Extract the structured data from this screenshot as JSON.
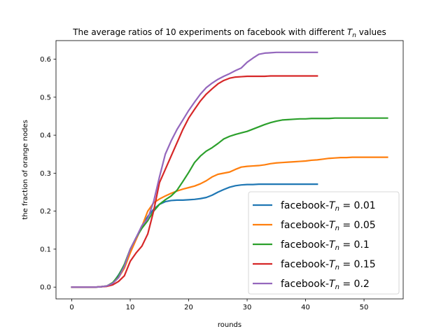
{
  "chart_data": {
    "type": "line",
    "title": "The average ratios of 10 experiments on facebook with different Tn values",
    "title_html": {
      "prefix": "The average ratios of 10 experiments on facebook with different ",
      "var": "T",
      "sub": "n",
      "suffix": " values"
    },
    "xlabel": "rounds",
    "ylabel": "the fraction of orange nodes",
    "xlim": [
      -2.7,
      56.7
    ],
    "ylim": [
      -0.031,
      0.649
    ],
    "xticks": [
      0,
      10,
      20,
      30,
      40,
      50
    ],
    "yticks": [
      0.0,
      0.1,
      0.2,
      0.3,
      0.4,
      0.5,
      0.6
    ],
    "ytick_labels": [
      "0.0",
      "0.1",
      "0.2",
      "0.3",
      "0.4",
      "0.5",
      "0.6"
    ],
    "grid": false,
    "legend_position": "lower-right",
    "series": [
      {
        "name": "facebook-Tn = 0.01",
        "legend_label": {
          "prefix": "facebook-",
          "var": "T",
          "sub": "n",
          "value": " = 0.01"
        },
        "color": "#1f77b4",
        "x": [
          0,
          1,
          2,
          3,
          4,
          5,
          6,
          7,
          8,
          9,
          10,
          11,
          12,
          13,
          14,
          15,
          16,
          17,
          18,
          19,
          20,
          21,
          22,
          23,
          24,
          25,
          26,
          27,
          28,
          29,
          30,
          31,
          32,
          33,
          34,
          35,
          36,
          37,
          38,
          39,
          40,
          41,
          42
        ],
        "y": [
          0,
          0,
          0,
          0,
          0,
          0.001,
          0.003,
          0.01,
          0.032,
          0.058,
          0.095,
          0.13,
          0.16,
          0.186,
          0.205,
          0.218,
          0.225,
          0.228,
          0.229,
          0.229,
          0.23,
          0.231,
          0.233,
          0.236,
          0.242,
          0.25,
          0.257,
          0.263,
          0.267,
          0.269,
          0.27,
          0.27,
          0.271,
          0.271,
          0.271,
          0.271,
          0.271,
          0.271,
          0.271,
          0.271,
          0.271,
          0.271,
          0.271
        ]
      },
      {
        "name": "facebook-Tn = 0.05",
        "legend_label": {
          "prefix": "facebook-",
          "var": "T",
          "sub": "n",
          "value": " = 0.05"
        },
        "color": "#ff7f0e",
        "x": [
          0,
          1,
          2,
          3,
          4,
          5,
          6,
          7,
          8,
          9,
          10,
          11,
          12,
          13,
          14,
          15,
          16,
          17,
          18,
          19,
          20,
          21,
          22,
          23,
          24,
          25,
          26,
          27,
          28,
          29,
          30,
          31,
          32,
          33,
          34,
          35,
          36,
          37,
          38,
          39,
          40,
          41,
          42,
          43,
          44,
          45,
          46,
          47,
          48,
          49,
          50,
          51,
          52,
          53,
          54
        ],
        "y": [
          0,
          0,
          0,
          0,
          0,
          0.001,
          0.003,
          0.01,
          0.025,
          0.05,
          0.09,
          0.125,
          0.16,
          0.2,
          0.222,
          0.232,
          0.24,
          0.247,
          0.253,
          0.258,
          0.262,
          0.266,
          0.272,
          0.28,
          0.29,
          0.297,
          0.3,
          0.303,
          0.31,
          0.316,
          0.318,
          0.319,
          0.32,
          0.322,
          0.325,
          0.327,
          0.328,
          0.329,
          0.33,
          0.331,
          0.332,
          0.334,
          0.335,
          0.337,
          0.339,
          0.34,
          0.341,
          0.341,
          0.342,
          0.342,
          0.342,
          0.342,
          0.342,
          0.342,
          0.342
        ]
      },
      {
        "name": "facebook-Tn = 0.1",
        "legend_label": {
          "prefix": "facebook-",
          "var": "T",
          "sub": "n",
          "value": " = 0.1"
        },
        "color": "#2ca02c",
        "x": [
          0,
          1,
          2,
          3,
          4,
          5,
          6,
          7,
          8,
          9,
          10,
          11,
          12,
          13,
          14,
          15,
          16,
          17,
          18,
          19,
          20,
          21,
          22,
          23,
          24,
          25,
          26,
          27,
          28,
          29,
          30,
          31,
          32,
          33,
          34,
          35,
          36,
          37,
          38,
          39,
          40,
          41,
          42,
          43,
          44,
          45,
          46,
          47,
          48,
          49,
          50,
          51,
          52,
          53,
          54
        ],
        "y": [
          0,
          0,
          0,
          0,
          0,
          0.001,
          0.003,
          0.012,
          0.03,
          0.06,
          0.1,
          0.13,
          0.155,
          0.175,
          0.2,
          0.218,
          0.23,
          0.24,
          0.255,
          0.278,
          0.302,
          0.328,
          0.345,
          0.358,
          0.367,
          0.378,
          0.39,
          0.397,
          0.402,
          0.406,
          0.41,
          0.416,
          0.422,
          0.428,
          0.433,
          0.437,
          0.44,
          0.441,
          0.442,
          0.443,
          0.443,
          0.444,
          0.444,
          0.444,
          0.444,
          0.445,
          0.445,
          0.445,
          0.445,
          0.445,
          0.445,
          0.445,
          0.445,
          0.445,
          0.445
        ]
      },
      {
        "name": "facebook-Tn = 0.15",
        "legend_label": {
          "prefix": "facebook-",
          "var": "T",
          "sub": "n",
          "value": " = 0.15"
        },
        "color": "#d62728",
        "x": [
          0,
          1,
          2,
          3,
          4,
          5,
          6,
          7,
          8,
          9,
          10,
          11,
          12,
          13,
          14,
          15,
          16,
          17,
          18,
          19,
          20,
          21,
          22,
          23,
          24,
          25,
          26,
          27,
          28,
          29,
          30,
          31,
          32,
          33,
          34,
          35,
          36,
          37,
          38,
          39,
          40,
          41,
          42
        ],
        "y": [
          0,
          0,
          0,
          0,
          0,
          0.001,
          0.002,
          0.006,
          0.015,
          0.03,
          0.068,
          0.09,
          0.108,
          0.14,
          0.2,
          0.275,
          0.31,
          0.345,
          0.38,
          0.415,
          0.445,
          0.468,
          0.49,
          0.508,
          0.522,
          0.535,
          0.544,
          0.55,
          0.553,
          0.554,
          0.555,
          0.555,
          0.555,
          0.555,
          0.556,
          0.556,
          0.556,
          0.556,
          0.556,
          0.556,
          0.556,
          0.556,
          0.556
        ]
      },
      {
        "name": "facebook-Tn = 0.2",
        "legend_label": {
          "prefix": "facebook-",
          "var": "T",
          "sub": "n",
          "value": " = 0.2"
        },
        "color": "#9467bd",
        "x": [
          0,
          1,
          2,
          3,
          4,
          5,
          6,
          7,
          8,
          9,
          10,
          11,
          12,
          13,
          14,
          15,
          16,
          17,
          18,
          19,
          20,
          21,
          22,
          23,
          24,
          25,
          26,
          27,
          28,
          29,
          30,
          31,
          32,
          33,
          34,
          35,
          36,
          37,
          38,
          39,
          40,
          41,
          42
        ],
        "y": [
          0,
          0,
          0,
          0,
          0,
          0.001,
          0.003,
          0.01,
          0.025,
          0.055,
          0.1,
          0.13,
          0.162,
          0.18,
          0.225,
          0.29,
          0.35,
          0.385,
          0.415,
          0.44,
          0.465,
          0.487,
          0.508,
          0.525,
          0.537,
          0.547,
          0.555,
          0.562,
          0.57,
          0.577,
          0.592,
          0.603,
          0.613,
          0.616,
          0.617,
          0.618,
          0.618,
          0.618,
          0.618,
          0.618,
          0.618,
          0.618,
          0.618
        ]
      }
    ]
  }
}
